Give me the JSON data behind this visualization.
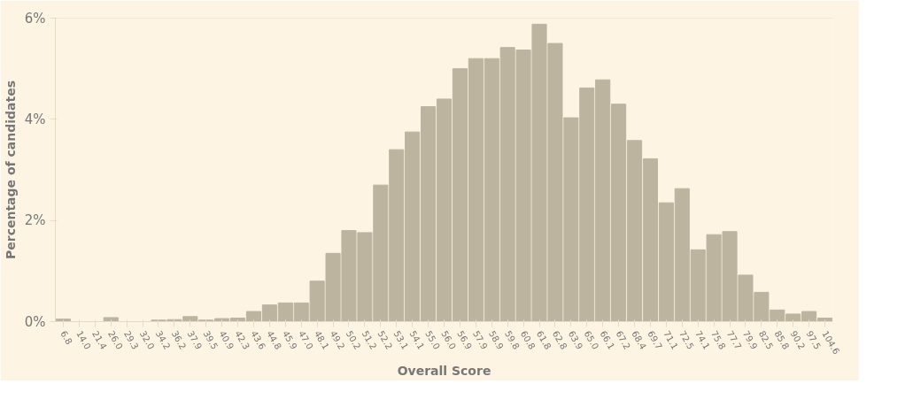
{
  "chart_data": {
    "type": "bar",
    "xlabel": "Overall Score",
    "ylabel": "Percentage of candidates",
    "categories": [
      "6.8",
      "14.0",
      "21.4",
      "26.0",
      "29.3",
      "32.0",
      "34.2",
      "36.2",
      "37.9",
      "39.5",
      "40.9",
      "42.3",
      "43.6",
      "44.8",
      "45.9",
      "47.0",
      "48.1",
      "49.2",
      "50.2",
      "51.2",
      "52.2",
      "53.1",
      "54.1",
      "55.0",
      "56.0",
      "56.9",
      "57.9",
      "58.9",
      "59.8",
      "60.8",
      "61.8",
      "62.8",
      "63.9",
      "65.0",
      "66.1",
      "67.2",
      "68.4",
      "69.7",
      "71.1",
      "72.5",
      "74.1",
      "75.8",
      "77.7",
      "79.9",
      "82.5",
      "85.8",
      "90.2",
      "97.5",
      "104.6"
    ],
    "values": [
      0.05,
      0,
      0,
      0.08,
      0,
      0,
      0.03,
      0.04,
      0.1,
      0.03,
      0.06,
      0.07,
      0.2,
      0.33,
      0.37,
      0.37,
      0.8,
      1.35,
      1.8,
      1.76,
      2.7,
      3.4,
      3.75,
      4.25,
      4.4,
      5.0,
      5.2,
      5.2,
      5.42,
      5.37,
      5.88,
      5.5,
      4.03,
      4.62,
      4.78,
      4.3,
      3.58,
      3.22,
      2.35,
      2.63,
      1.42,
      1.72,
      1.78,
      0.92,
      0.58,
      0.23,
      0.15,
      0.2,
      0.07
    ],
    "color": "#bdb4a0",
    "ylim": [
      0,
      6
    ],
    "yticks": [
      {
        "value": 0,
        "label": "0%"
      },
      {
        "value": 2,
        "label": "2%"
      },
      {
        "value": 4,
        "label": "4%"
      },
      {
        "value": 6,
        "label": "6%"
      }
    ],
    "grid": false
  }
}
